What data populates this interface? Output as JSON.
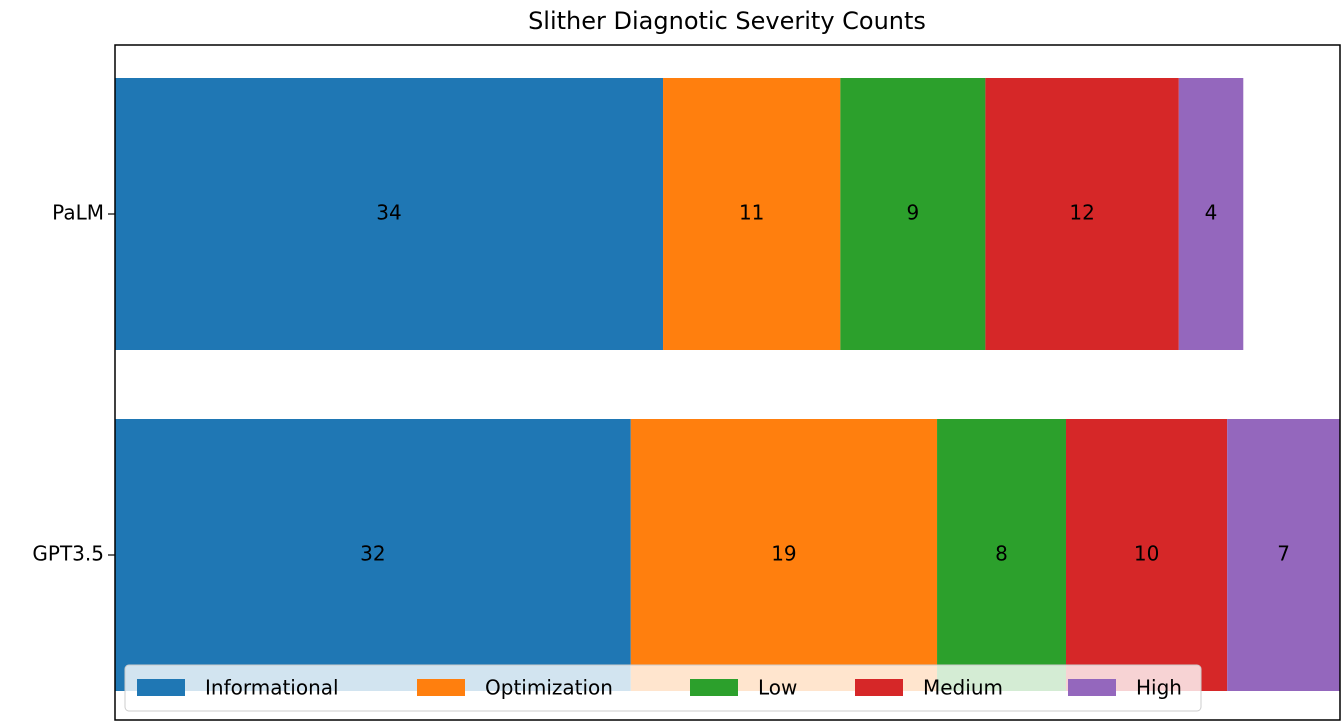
{
  "chart_data": {
    "type": "stacked_barh",
    "title": "Slither Diagnotic Severity Counts",
    "categories": [
      "PaLM",
      "GPT3.5"
    ],
    "series": [
      {
        "name": "Informational",
        "color": "#1f77b4",
        "values": [
          34,
          32
        ]
      },
      {
        "name": "Optimization",
        "color": "#ff7f0e",
        "values": [
          11,
          19
        ]
      },
      {
        "name": "Low",
        "color": "#2ca02c",
        "values": [
          9,
          8
        ]
      },
      {
        "name": "Medium",
        "color": "#d62728",
        "values": [
          12,
          10
        ]
      },
      {
        "name": "High",
        "color": "#9467bd",
        "values": [
          4,
          7
        ]
      }
    ],
    "xlim": [
      0,
      76
    ],
    "legend": "lower center"
  }
}
